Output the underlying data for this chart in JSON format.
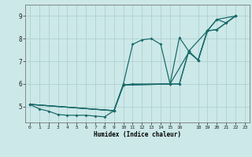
{
  "title": "",
  "xlabel": "Humidex (Indice chaleur)",
  "bg_color": "#cce8e8",
  "grid_color": "#aacccc",
  "line_color": "#1a6b6b",
  "xlim": [
    -0.5,
    23.5
  ],
  "ylim": [
    4.3,
    9.5
  ],
  "xticks": [
    0,
    1,
    2,
    3,
    4,
    5,
    6,
    7,
    8,
    9,
    10,
    11,
    12,
    13,
    14,
    15,
    16,
    18,
    19,
    20,
    21,
    22,
    23
  ],
  "yticks": [
    5,
    6,
    7,
    8,
    9
  ],
  "series1": [
    [
      0,
      5.1
    ],
    [
      1,
      4.9
    ],
    [
      2,
      4.8
    ],
    [
      3,
      4.65
    ],
    [
      4,
      4.62
    ],
    [
      5,
      4.62
    ],
    [
      6,
      4.62
    ],
    [
      7,
      4.58
    ],
    [
      8,
      4.55
    ],
    [
      9,
      4.82
    ],
    [
      10,
      6.0
    ],
    [
      11,
      7.75
    ],
    [
      12,
      7.95
    ],
    [
      13,
      8.0
    ],
    [
      14,
      7.75
    ],
    [
      15,
      6.0
    ],
    [
      16,
      8.05
    ],
    [
      17,
      7.45
    ],
    [
      18,
      7.05
    ],
    [
      19,
      8.35
    ],
    [
      20,
      8.85
    ],
    [
      21,
      8.7
    ],
    [
      22,
      9.0
    ]
  ],
  "series2": [
    [
      0,
      5.1
    ],
    [
      9,
      4.82
    ],
    [
      10,
      5.95
    ],
    [
      11,
      6.0
    ],
    [
      15,
      6.0
    ],
    [
      16,
      6.0
    ],
    [
      17,
      7.45
    ],
    [
      19,
      8.35
    ],
    [
      20,
      8.4
    ],
    [
      21,
      8.7
    ],
    [
      22,
      9.0
    ]
  ],
  "series3": [
    [
      0,
      5.1
    ],
    [
      9,
      4.82
    ],
    [
      10,
      5.95
    ],
    [
      15,
      6.0
    ],
    [
      16,
      6.0
    ],
    [
      17,
      7.45
    ],
    [
      18,
      7.05
    ],
    [
      19,
      8.35
    ],
    [
      20,
      8.85
    ],
    [
      22,
      9.0
    ]
  ],
  "series4": [
    [
      0,
      5.1
    ],
    [
      9,
      4.82
    ],
    [
      10,
      5.95
    ],
    [
      15,
      6.0
    ],
    [
      17,
      7.4
    ],
    [
      18,
      7.05
    ],
    [
      19,
      8.35
    ],
    [
      20,
      8.4
    ],
    [
      22,
      9.0
    ]
  ]
}
